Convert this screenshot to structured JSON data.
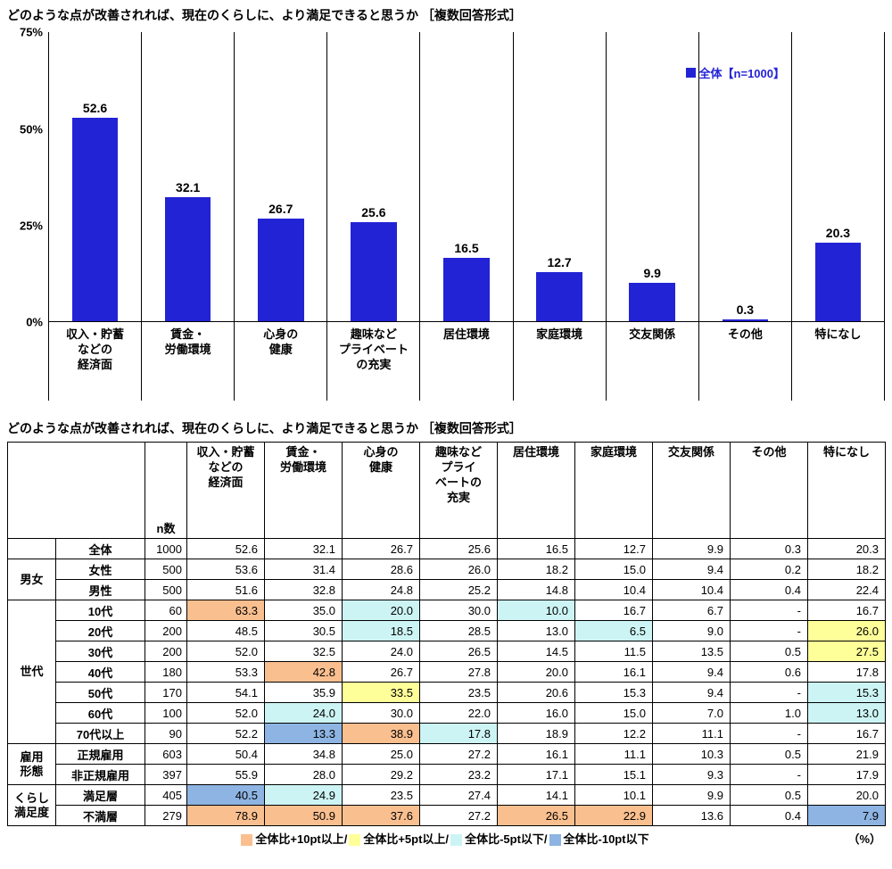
{
  "page": {
    "chart_title": "どのような点が改善されれば、現在のくらしに、より満足できると思うか ［複数回答形式］",
    "table_title": "どのような点が改善されれば、現在のくらしに、より満足できると思うか ［複数回答形式］"
  },
  "chart": {
    "legend_label": "全体【n=1000】",
    "bar_color": "#2323d6",
    "legend_color": "#2323d6",
    "y_ticks": [
      "75%",
      "50%",
      "25%",
      "0%"
    ]
  },
  "chart_data": {
    "type": "bar",
    "title": "どのような点が改善されれば、現在のくらしに、より満足できると思うか ［複数回答形式］",
    "categories": [
      "収入・貯蓄\nなどの\n経済面",
      "賃金・\n労働環境",
      "心身の\n健康",
      "趣味など\nプライベート\nの充実",
      "居住環境",
      "家庭環境",
      "交友関係",
      "その他",
      "特になし"
    ],
    "values": [
      52.6,
      32.1,
      26.7,
      25.6,
      16.5,
      12.7,
      9.9,
      0.3,
      20.3
    ],
    "series_name": "全体【n=1000】",
    "xlabel": "",
    "ylabel": "%",
    "ylim": [
      0,
      75
    ],
    "grid": false,
    "legend_position": "top-right"
  },
  "table": {
    "n_label": "n数",
    "col_headers": [
      "収入・貯蓄\nなどの\n経済面",
      "賃金・\n労働環境",
      "心身の\n健康",
      "趣味など\nプライ\nベートの\n充実",
      "居住環境",
      "家庭環境",
      "交友関係",
      "その他",
      "特になし"
    ],
    "rows": [
      {
        "group": "",
        "label": "全体",
        "n": "1000",
        "values": [
          "52.6",
          "32.1",
          "26.7",
          "25.6",
          "16.5",
          "12.7",
          "9.9",
          "0.3",
          "20.3"
        ],
        "hl": [
          "",
          "",
          "",
          "",
          "",
          "",
          "",
          "",
          ""
        ]
      },
      {
        "group": "男女",
        "group_rows": 2,
        "label": "女性",
        "n": "500",
        "values": [
          "53.6",
          "31.4",
          "28.6",
          "26.0",
          "18.2",
          "15.0",
          "9.4",
          "0.2",
          "18.2"
        ],
        "hl": [
          "",
          "",
          "",
          "",
          "",
          "",
          "",
          "",
          ""
        ]
      },
      {
        "label": "男性",
        "n": "500",
        "values": [
          "51.6",
          "32.8",
          "24.8",
          "25.2",
          "14.8",
          "10.4",
          "10.4",
          "0.4",
          "22.4"
        ],
        "hl": [
          "",
          "",
          "",
          "",
          "",
          "",
          "",
          "",
          ""
        ]
      },
      {
        "group": "世代",
        "group_rows": 7,
        "label": "10代",
        "n": "60",
        "values": [
          "63.3",
          "35.0",
          "20.0",
          "30.0",
          "10.0",
          "16.7",
          "6.7",
          "-",
          "16.7"
        ],
        "hl": [
          "p10",
          "",
          "m5",
          "",
          "m5",
          "",
          "",
          "",
          ""
        ]
      },
      {
        "label": "20代",
        "n": "200",
        "values": [
          "48.5",
          "30.5",
          "18.5",
          "28.5",
          "13.0",
          "6.5",
          "9.0",
          "-",
          "26.0"
        ],
        "hl": [
          "",
          "",
          "m5",
          "",
          "",
          "m5",
          "",
          "",
          "p5"
        ]
      },
      {
        "label": "30代",
        "n": "200",
        "values": [
          "52.0",
          "32.5",
          "24.0",
          "26.5",
          "14.5",
          "11.5",
          "13.5",
          "0.5",
          "27.5"
        ],
        "hl": [
          "",
          "",
          "",
          "",
          "",
          "",
          "",
          "",
          "p5"
        ]
      },
      {
        "label": "40代",
        "n": "180",
        "values": [
          "53.3",
          "42.8",
          "26.7",
          "27.8",
          "20.0",
          "16.1",
          "9.4",
          "0.6",
          "17.8"
        ],
        "hl": [
          "",
          "p10",
          "",
          "",
          "",
          "",
          "",
          "",
          ""
        ]
      },
      {
        "label": "50代",
        "n": "170",
        "values": [
          "54.1",
          "35.9",
          "33.5",
          "23.5",
          "20.6",
          "15.3",
          "9.4",
          "-",
          "15.3"
        ],
        "hl": [
          "",
          "",
          "p5",
          "",
          "",
          "",
          "",
          "",
          "m5"
        ]
      },
      {
        "label": "60代",
        "n": "100",
        "values": [
          "52.0",
          "24.0",
          "30.0",
          "22.0",
          "16.0",
          "15.0",
          "7.0",
          "1.0",
          "13.0"
        ],
        "hl": [
          "",
          "m5",
          "",
          "",
          "",
          "",
          "",
          "",
          "m5"
        ]
      },
      {
        "label": "70代以上",
        "n": "90",
        "values": [
          "52.2",
          "13.3",
          "38.9",
          "17.8",
          "18.9",
          "12.2",
          "11.1",
          "-",
          "16.7"
        ],
        "hl": [
          "",
          "m10",
          "p10",
          "m5",
          "",
          "",
          "",
          "",
          ""
        ]
      },
      {
        "group": "雇用\n形態",
        "group_rows": 2,
        "label": "正規雇用",
        "n": "603",
        "values": [
          "50.4",
          "34.8",
          "25.0",
          "27.2",
          "16.1",
          "11.1",
          "10.3",
          "0.5",
          "21.9"
        ],
        "hl": [
          "",
          "",
          "",
          "",
          "",
          "",
          "",
          "",
          ""
        ]
      },
      {
        "label": "非正規雇用",
        "n": "397",
        "values": [
          "55.9",
          "28.0",
          "29.2",
          "23.2",
          "17.1",
          "15.1",
          "9.3",
          "-",
          "17.9"
        ],
        "hl": [
          "",
          "",
          "",
          "",
          "",
          "",
          "",
          "",
          ""
        ]
      },
      {
        "group": "くらし\n満足度",
        "group_rows": 2,
        "label": "満足層",
        "n": "405",
        "values": [
          "40.5",
          "24.9",
          "23.5",
          "27.4",
          "14.1",
          "10.1",
          "9.9",
          "0.5",
          "20.0"
        ],
        "hl": [
          "m10",
          "m5",
          "",
          "",
          "",
          "",
          "",
          "",
          ""
        ]
      },
      {
        "label": "不満層",
        "n": "279",
        "values": [
          "78.9",
          "50.9",
          "37.6",
          "27.2",
          "26.5",
          "22.9",
          "13.6",
          "0.4",
          "7.9"
        ],
        "hl": [
          "p10",
          "p10",
          "p10",
          "",
          "p10",
          "p10",
          "",
          "",
          "m10"
        ]
      }
    ]
  },
  "highlight_colors": {
    "p10": "#FABF8F",
    "p5": "#FFFF99",
    "m5": "#CDF4F4",
    "m10": "#8DB4E2"
  },
  "highlight_legend": {
    "items": [
      {
        "code": "p10",
        "color": "#FABF8F",
        "label": "全体比+10pt以上/"
      },
      {
        "code": "p5",
        "color": "#FFFF99",
        "label": "全体比+5pt以上/"
      },
      {
        "code": "m5",
        "color": "#CDF4F4",
        "label": "全体比-5pt以下/"
      },
      {
        "code": "m10",
        "color": "#8DB4E2",
        "label": "全体比-10pt以下"
      }
    ],
    "unit": "（%）"
  }
}
